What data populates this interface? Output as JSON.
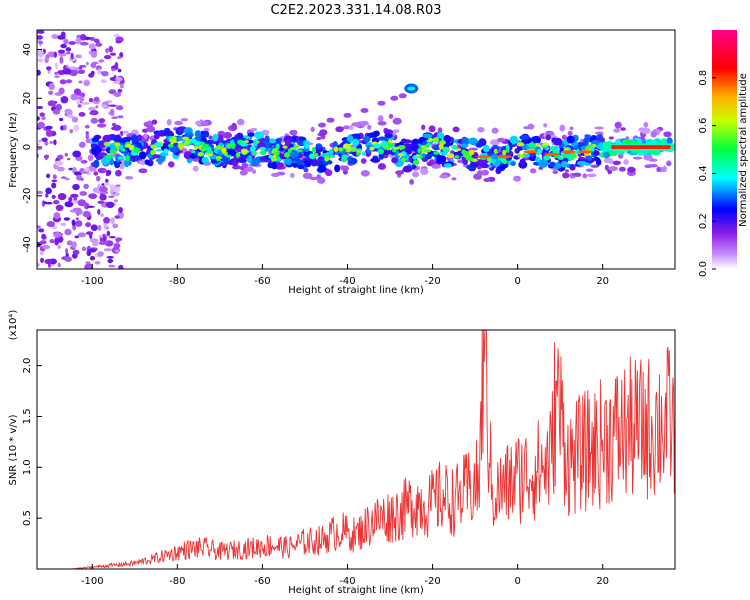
{
  "title": "C2E2.2023.331.14.08.R03",
  "chart_data": [
    {
      "type": "heatmap",
      "xlabel": "Height of straight line (km)",
      "ylabel": "Frequency (Hz)",
      "xlim": [
        -113,
        37
      ],
      "ylim": [
        -50,
        48
      ],
      "xticks": [
        -100,
        -80,
        -60,
        -40,
        -20,
        0,
        20
      ],
      "yticks": [
        -40,
        -20,
        0,
        20,
        40
      ],
      "colorbar": {
        "label": "Normalized spectral amplitude",
        "range": [
          0,
          1
        ],
        "ticks": [
          0.0,
          0.2,
          0.4,
          0.6,
          0.8
        ],
        "colormap": [
          "#ffffff",
          "#a020f0",
          "#0000ff",
          "#00ffff",
          "#00ff00",
          "#ffff00",
          "#ff0000",
          "#ff0088"
        ]
      },
      "ridge": {
        "x": [
          -100,
          -90,
          -85,
          -80,
          -75,
          -70,
          -65,
          -60,
          -55,
          -50,
          -45,
          -40,
          -35,
          -30,
          -25,
          -20,
          -15,
          -10,
          -5,
          0,
          5,
          10,
          15,
          20,
          25,
          30,
          36
        ],
        "y": [
          -1,
          -2,
          0,
          2,
          0,
          -2,
          0,
          -1,
          -3,
          -2,
          -4,
          -2,
          0,
          2,
          -5,
          1,
          -3,
          -3,
          -4,
          -2,
          -1,
          -3,
          -2,
          -1,
          0,
          0,
          0
        ]
      },
      "features": [
        {
          "x": [
            -46,
            -44,
            -40,
            -36,
            -32,
            -29,
            -27
          ],
          "y": [
            9,
            11,
            13,
            15,
            18,
            20,
            21
          ]
        },
        {
          "x": [
            -25
          ],
          "y": [
            24
          ]
        }
      ]
    },
    {
      "type": "line",
      "xlabel": "Height of straight line (km)",
      "ylabel": "SNR (10 * v/v)",
      "scale_label": "(x10⁴)",
      "xlim": [
        -113,
        37
      ],
      "ylim": [
        0,
        2.35
      ],
      "xticks": [
        -100,
        -80,
        -60,
        -40,
        -20,
        0,
        20
      ],
      "yticks": [
        0.5,
        1.0,
        1.5,
        2.0
      ],
      "color": "#ee3333",
      "series": [
        {
          "x": [
            -113,
            -105,
            -100,
            -95,
            -90,
            -86,
            -82,
            -78,
            -74,
            -70,
            -66,
            -62,
            -58,
            -54,
            -50,
            -46,
            -42,
            -38,
            -34,
            -30,
            -27,
            -24,
            -21,
            -18,
            -15,
            -12,
            -9,
            -8,
            -6,
            -3,
            0,
            3,
            6,
            8,
            9,
            12,
            15,
            18,
            21,
            24,
            27,
            30,
            33,
            36,
            37
          ],
          "values": [
            0.0,
            0.0,
            0.02,
            0.04,
            0.06,
            0.1,
            0.15,
            0.2,
            0.22,
            0.18,
            0.2,
            0.22,
            0.25,
            0.22,
            0.28,
            0.3,
            0.4,
            0.35,
            0.5,
            0.55,
            0.6,
            0.7,
            0.65,
            0.75,
            0.7,
            0.8,
            0.9,
            2.35,
            0.75,
            0.85,
            0.95,
            1.0,
            1.05,
            1.15,
            1.85,
            1.1,
            1.2,
            1.25,
            1.35,
            1.4,
            1.45,
            1.45,
            1.5,
            1.55,
            1.35
          ]
        }
      ]
    }
  ]
}
